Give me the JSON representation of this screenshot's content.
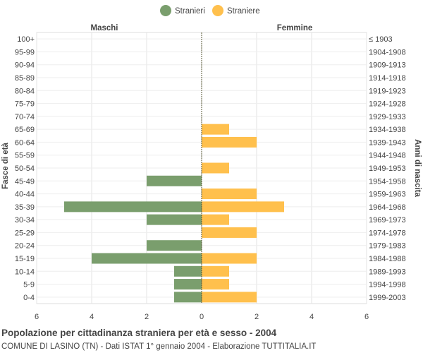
{
  "chart_data": {
    "type": "bar",
    "orientation": "horizontal-pyramid",
    "title": "Popolazione per cittadinanza straniera per età e sesso - 2004",
    "subtitle": "COMUNE DI LASINO (TN) - Dati ISTAT 1° gennaio 2004 - Elaborazione TUTTITALIA.IT",
    "left_header": "Maschi",
    "right_header": "Femmine",
    "ylabel_left": "Fasce di età",
    "ylabel_right": "Anni di nascita",
    "xlim": [
      -6,
      6
    ],
    "x_ticks": [
      "6",
      "4",
      "2",
      "0",
      "2",
      "4",
      "6"
    ],
    "legend_position": "top-center",
    "categories": [
      "100+",
      "95-99",
      "90-94",
      "85-89",
      "80-84",
      "75-79",
      "70-74",
      "65-69",
      "60-64",
      "55-59",
      "50-54",
      "45-49",
      "40-44",
      "35-39",
      "30-34",
      "25-29",
      "20-24",
      "15-19",
      "10-14",
      "5-9",
      "0-4"
    ],
    "birth_years": [
      "≤ 1903",
      "1904-1908",
      "1909-1913",
      "1914-1918",
      "1919-1923",
      "1924-1928",
      "1929-1933",
      "1934-1938",
      "1939-1943",
      "1944-1948",
      "1949-1953",
      "1954-1958",
      "1959-1963",
      "1964-1968",
      "1969-1973",
      "1974-1978",
      "1979-1983",
      "1984-1988",
      "1989-1993",
      "1994-1998",
      "1999-2003"
    ],
    "series": [
      {
        "name": "Stranieri",
        "color": "#7a9e6d",
        "values": [
          0,
          0,
          0,
          0,
          0,
          0,
          0,
          0,
          0,
          0,
          0,
          2,
          0,
          5,
          2,
          0,
          2,
          4,
          1,
          1,
          1
        ]
      },
      {
        "name": "Straniere",
        "color": "#ffc04d",
        "values": [
          0,
          0,
          0,
          0,
          0,
          0,
          0,
          1,
          2,
          0,
          1,
          0,
          2,
          3,
          1,
          2,
          0,
          2,
          1,
          1,
          2
        ]
      }
    ]
  }
}
